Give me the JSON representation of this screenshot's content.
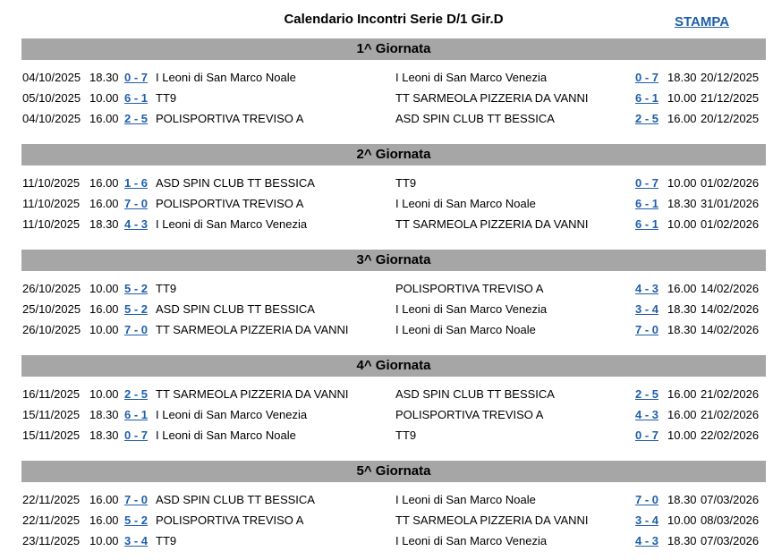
{
  "header": {
    "title": "Calendario Incontri Serie D/1 Gir.D",
    "print_link": "STAMPA"
  },
  "rounds": [
    {
      "title": "1^ Giornata",
      "matches": [
        [
          "04/10/2025",
          "18.30",
          "0 - 7",
          "I Leoni di San Marco Noale",
          "I Leoni di San Marco Venezia",
          "0 - 7",
          "18.30",
          "20/12/2025"
        ],
        [
          "05/10/2025",
          "10.00",
          "6 - 1",
          "TT9",
          "TT SARMEOLA PIZZERIA DA VANNI",
          "6 - 1",
          "10.00",
          "21/12/2025"
        ],
        [
          "04/10/2025",
          "16.00",
          "2 - 5",
          "POLISPORTIVA TREVISO A",
          "ASD SPIN CLUB TT BESSICA",
          "2 - 5",
          "16.00",
          "20/12/2025"
        ]
      ]
    },
    {
      "title": "2^ Giornata",
      "matches": [
        [
          "11/10/2025",
          "16.00",
          "1 - 6",
          "ASD SPIN CLUB TT BESSICA",
          "TT9",
          "0 - 7",
          "10.00",
          "01/02/2026"
        ],
        [
          "11/10/2025",
          "16.00",
          "7 - 0",
          "POLISPORTIVA TREVISO A",
          "I Leoni di San Marco Noale",
          "6 - 1",
          "18.30",
          "31/01/2026"
        ],
        [
          "11/10/2025",
          "18.30",
          "4 - 3",
          "I Leoni di San Marco Venezia",
          "TT SARMEOLA PIZZERIA DA VANNI",
          "6 - 1",
          "10.00",
          "01/02/2026"
        ]
      ]
    },
    {
      "title": "3^ Giornata",
      "matches": [
        [
          "26/10/2025",
          "10.00",
          "5 - 2",
          "TT9",
          "POLISPORTIVA TREVISO A",
          "4 - 3",
          "16.00",
          "14/02/2026"
        ],
        [
          "25/10/2025",
          "16.00",
          "5 - 2",
          "ASD SPIN CLUB TT BESSICA",
          "I Leoni di San Marco Venezia",
          "3 - 4",
          "18.30",
          "14/02/2026"
        ],
        [
          "26/10/2025",
          "10.00",
          "7 - 0",
          "TT SARMEOLA PIZZERIA DA VANNI",
          "I Leoni di San Marco Noale",
          "7 - 0",
          "18.30",
          "14/02/2026"
        ]
      ]
    },
    {
      "title": "4^ Giornata",
      "matches": [
        [
          "16/11/2025",
          "10.00",
          "2 - 5",
          "TT SARMEOLA PIZZERIA DA VANNI",
          "ASD SPIN CLUB TT BESSICA",
          "2 - 5",
          "16.00",
          "21/02/2026"
        ],
        [
          "15/11/2025",
          "18.30",
          "6 - 1",
          "I Leoni di San Marco Venezia",
          "POLISPORTIVA TREVISO A",
          "4 - 3",
          "16.00",
          "21/02/2026"
        ],
        [
          "15/11/2025",
          "18.30",
          "0 - 7",
          "I Leoni di San Marco Noale",
          "TT9",
          "0 - 7",
          "10.00",
          "22/02/2026"
        ]
      ]
    },
    {
      "title": "5^ Giornata",
      "matches": [
        [
          "22/11/2025",
          "16.00",
          "7 - 0",
          "ASD SPIN CLUB TT BESSICA",
          "I Leoni di San Marco Noale",
          "7 - 0",
          "18.30",
          "07/03/2026"
        ],
        [
          "22/11/2025",
          "16.00",
          "5 - 2",
          "POLISPORTIVA TREVISO A",
          "TT SARMEOLA PIZZERIA DA VANNI",
          "3 - 4",
          "10.00",
          "08/03/2026"
        ],
        [
          "23/11/2025",
          "10.00",
          "3 - 4",
          "TT9",
          "I Leoni di San Marco Venezia",
          "4 - 3",
          "18.30",
          "07/03/2026"
        ]
      ]
    }
  ]
}
